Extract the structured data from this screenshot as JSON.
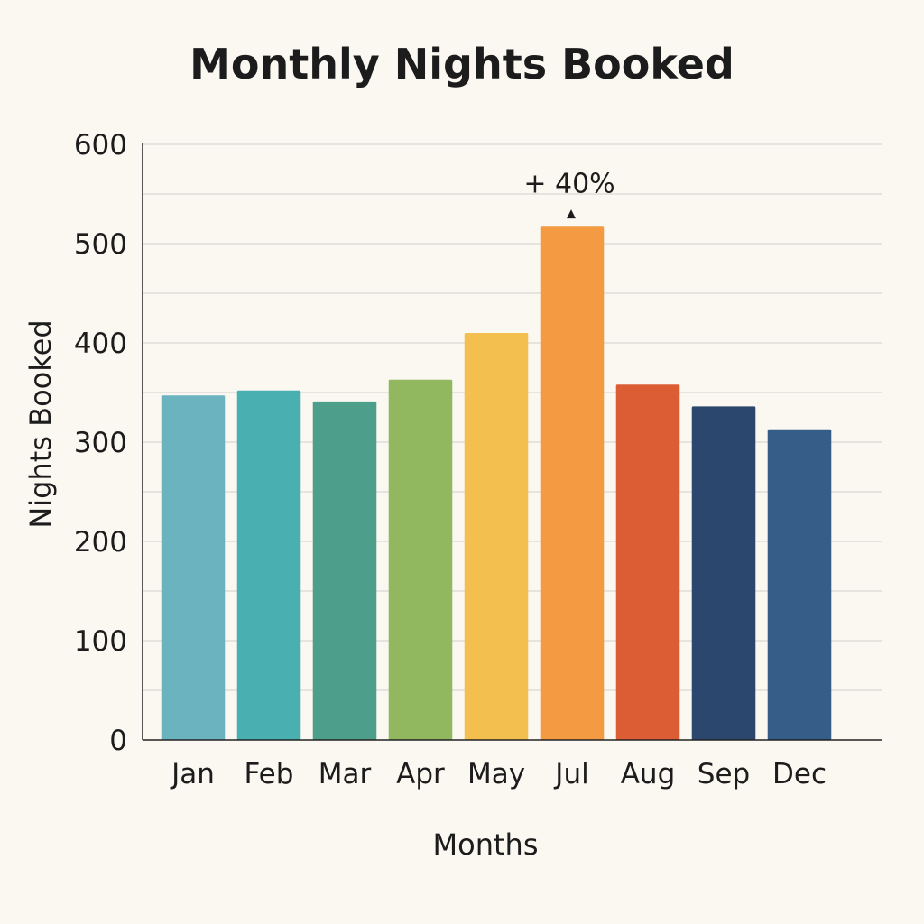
{
  "chart_data": {
    "type": "bar",
    "title": "Monthly Nights Booked",
    "xlabel": "Months",
    "ylabel": "Nights Booked",
    "categories": [
      "Jan",
      "Feb",
      "Mar",
      "Apr",
      "May",
      "Jul",
      "Aug",
      "Sep",
      "Dec"
    ],
    "values": [
      347,
      352,
      341,
      363,
      410,
      517,
      358,
      336,
      313
    ],
    "colors": [
      "#6ab3bf",
      "#4aafb1",
      "#4d9e8a",
      "#91b75f",
      "#f3c04f",
      "#f39a42",
      "#dc5d34",
      "#2b476d",
      "#355d88"
    ],
    "y_ticks": [
      "0",
      "100",
      "200",
      "300",
      "400",
      "500",
      "600"
    ],
    "ylim": [
      0,
      600
    ],
    "grid": true,
    "annotation": {
      "category": "Jul",
      "text": "+ 40%",
      "marker": "▲"
    }
  }
}
